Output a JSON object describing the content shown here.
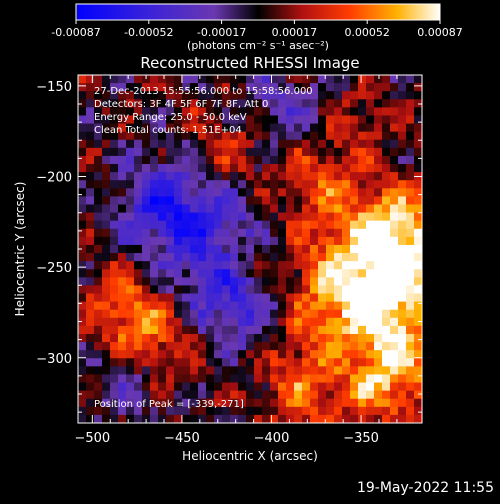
{
  "colorbar": {
    "ticks": [
      "-0.00087",
      "-0.00052",
      "-0.00017",
      "0.00017",
      "0.00052",
      "0.00087"
    ],
    "unit_label": "(photons cm⁻² s⁻¹ asec⁻²)",
    "range": [
      -0.00087,
      0.00087
    ]
  },
  "chart_data": {
    "type": "heatmap",
    "title": "Reconstructed RHESSI Image",
    "xlabel": "Heliocentric X (arcsec)",
    "ylabel": "Heliocentric Y (arcsec)",
    "xlim": [
      -508,
      -316
    ],
    "ylim": [
      -336,
      -144
    ],
    "x_ticks": [
      -500,
      -450,
      -400,
      -350
    ],
    "y_ticks": [
      -150,
      -200,
      -250,
      -300
    ],
    "grid": false,
    "info_lines": [
      "27-Dec-2013 15:55:56.000 to 15:58:56.000",
      "Detectors: 3F 4F 5F 6F 7F 8F, Att 0",
      "Energy Range: 25.0 - 50.0 keV",
      "Clean    Total counts: 1.51E+04"
    ],
    "peak_label": "Position of Peak = [-339,-271]",
    "peak": [
      -339,
      -271
    ]
  },
  "footer": {
    "timestamp": "19-May-2022 11:55"
  }
}
